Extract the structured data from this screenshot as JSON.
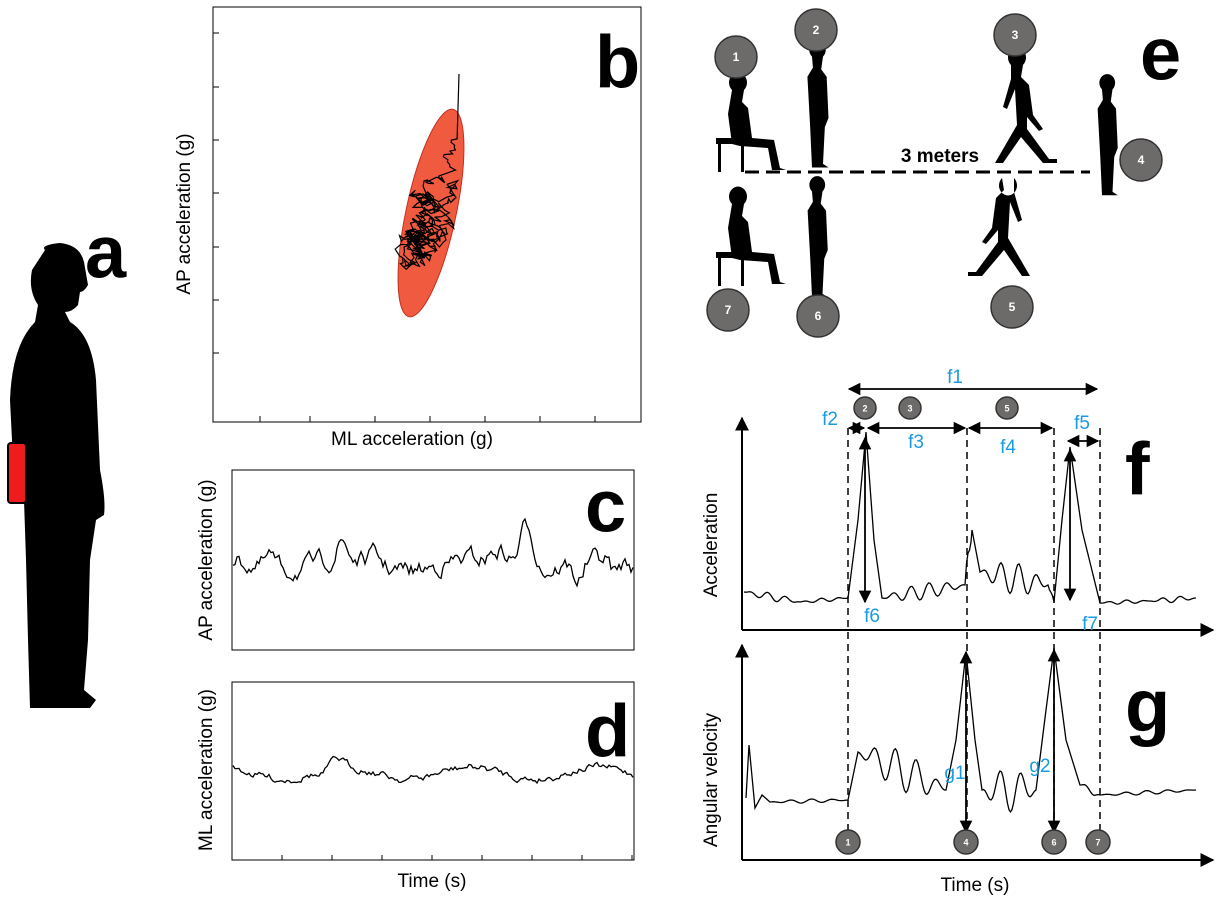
{
  "panel_a": {
    "letter": "a"
  },
  "panel_b": {
    "letter": "b",
    "x_label": "ML acceleration (g)",
    "y_label": "AP acceleration (g)"
  },
  "panel_c": {
    "letter": "c",
    "y_label": "AP acceleration (g)"
  },
  "panel_d": {
    "letter": "d",
    "y_label": "ML acceleration (g)",
    "x_label": "Time (s)"
  },
  "panel_e": {
    "letter": "e",
    "distance": "3 meters",
    "steps": [
      "1",
      "2",
      "3",
      "4",
      "5",
      "6",
      "7"
    ]
  },
  "panel_f": {
    "letter": "f",
    "y_label": "Acceleration",
    "steps": [
      "2",
      "3",
      "5"
    ],
    "phases": [
      "f1",
      "f2",
      "f3",
      "f4",
      "f5",
      "f6",
      "f7"
    ]
  },
  "panel_g": {
    "letter": "g",
    "y_label": "Angular velocity",
    "x_label": "Time (s)",
    "steps": [
      "1",
      "4",
      "6",
      "7"
    ],
    "peaks": [
      "g1",
      "g2"
    ]
  }
}
